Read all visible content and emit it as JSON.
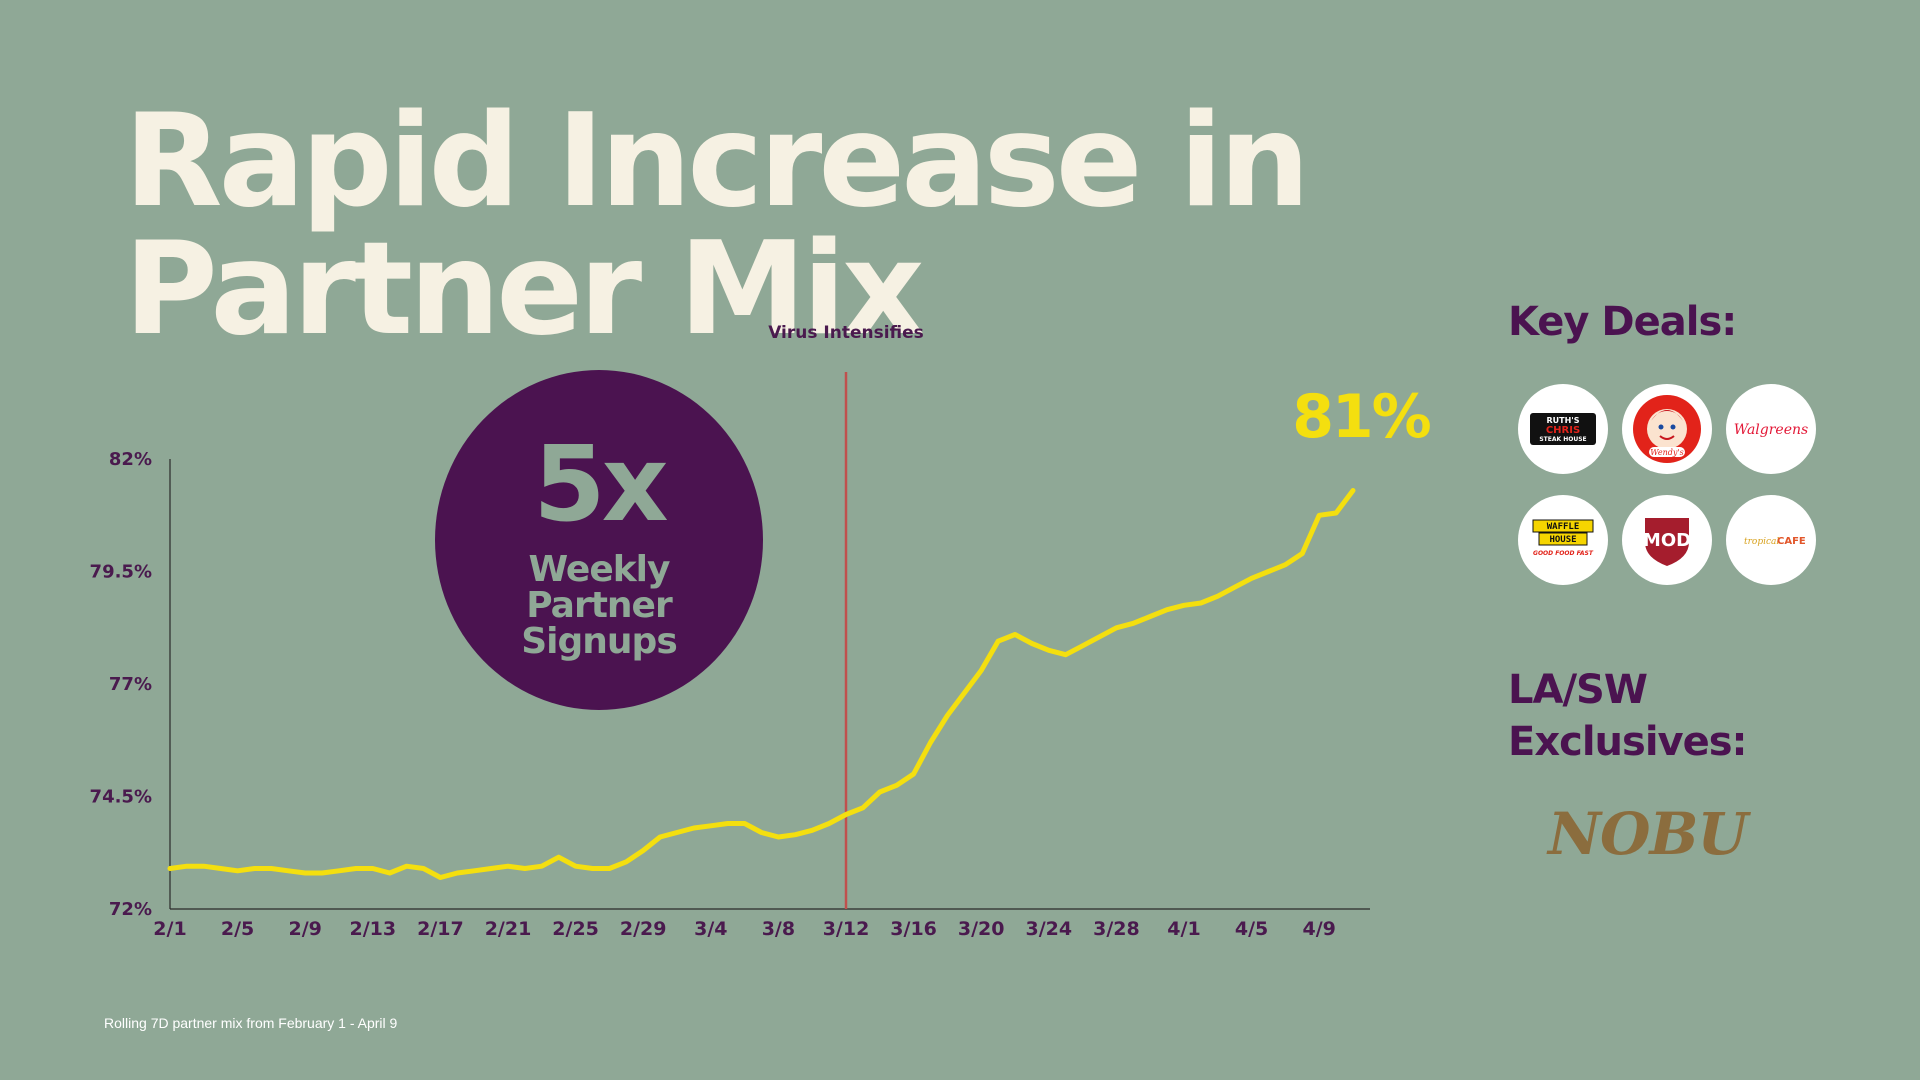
{
  "title": "Rapid Increase in Partner Mix",
  "circle": {
    "big": "5x",
    "sub": "Weekly Partner Signups"
  },
  "side": {
    "key_deals_heading": "Key Deals:",
    "exclusives_heading": "LA/SW Exclusives:",
    "key_deals": [
      {
        "name": "ruths-chris-logo",
        "text_lines": [
          "RUTH'S",
          "CHRIS",
          "STEAK HOUSE"
        ]
      },
      {
        "name": "wendys-logo",
        "text_lines": [
          "Wendy's"
        ]
      },
      {
        "name": "walgreens-logo",
        "text_lines": [
          "Walgreens"
        ]
      },
      {
        "name": "waffle-house-logo",
        "text_lines": [
          "WAFFLE",
          "HOUSE",
          "GOOD FOOD FAST"
        ]
      },
      {
        "name": "mod-logo",
        "text_lines": [
          "MOD"
        ]
      },
      {
        "name": "tropical-cafe-logo",
        "text_lines": [
          "tropical CAFE"
        ]
      }
    ],
    "exclusive": "NOBU"
  },
  "footnote": "Rolling 7D partner mix from February 1  - April 9",
  "colors": {
    "line": "#f4df0f",
    "marker": "#c0504d",
    "circle": "#4b1350",
    "background": "#8fa896",
    "title": "#f6f1e3"
  },
  "chart_data": {
    "type": "line",
    "title": "",
    "xlabel": "",
    "ylabel": "",
    "ylim": [
      72,
      82
    ],
    "yticks": [
      "72%",
      "74.5%",
      "77%",
      "79.5%",
      "82%"
    ],
    "ytick_values": [
      72,
      74.5,
      77,
      79.5,
      82
    ],
    "xticks": [
      "2/1",
      "2/5",
      "2/9",
      "2/13",
      "2/17",
      "2/21",
      "2/25",
      "2/29",
      "3/4",
      "3/8",
      "3/12",
      "3/16",
      "3/20",
      "3/24",
      "3/28",
      "4/1",
      "4/5",
      "4/9"
    ],
    "x": [
      "2/1",
      "2/2",
      "2/3",
      "2/4",
      "2/5",
      "2/6",
      "2/7",
      "2/8",
      "2/9",
      "2/10",
      "2/11",
      "2/12",
      "2/13",
      "2/14",
      "2/15",
      "2/16",
      "2/17",
      "2/18",
      "2/19",
      "2/20",
      "2/21",
      "2/22",
      "2/23",
      "2/24",
      "2/25",
      "2/26",
      "2/27",
      "2/28",
      "2/29",
      "3/1",
      "3/2",
      "3/3",
      "3/4",
      "3/5",
      "3/6",
      "3/7",
      "3/8",
      "3/9",
      "3/10",
      "3/11",
      "3/12",
      "3/13",
      "3/14",
      "3/15",
      "3/16",
      "3/17",
      "3/18",
      "3/19",
      "3/20",
      "3/21",
      "3/22",
      "3/23",
      "3/24",
      "3/25",
      "3/26",
      "3/27",
      "3/28",
      "3/29",
      "3/30",
      "3/31",
      "4/1",
      "4/2",
      "4/3",
      "4/4",
      "4/5",
      "4/6",
      "4/7",
      "4/8",
      "4/9",
      "4/10",
      "4/11"
    ],
    "series": [
      {
        "values": [
          72.9,
          72.95,
          72.95,
          72.9,
          72.85,
          72.9,
          72.9,
          72.85,
          72.8,
          72.8,
          72.85,
          72.9,
          72.9,
          72.8,
          72.95,
          72.9,
          72.7,
          72.8,
          72.85,
          72.9,
          72.95,
          72.9,
          72.95,
          73.15,
          72.95,
          72.9,
          72.9,
          73.05,
          73.3,
          73.6,
          73.7,
          73.8,
          73.85,
          73.9,
          73.9,
          73.7,
          73.6,
          73.65,
          73.75,
          73.9,
          74.1,
          74.25,
          74.6,
          74.75,
          75.0,
          75.7,
          76.3,
          76.8,
          77.3,
          77.95,
          78.1,
          77.9,
          77.75,
          77.65,
          77.85,
          78.05,
          78.25,
          78.35,
          78.5,
          78.65,
          78.75,
          78.8,
          78.95,
          79.15,
          79.35,
          79.5,
          79.65,
          79.9,
          80.75,
          80.8,
          81.3
        ]
      }
    ],
    "annotations": [
      {
        "label": "Virus Intensifies",
        "x": "3/12"
      },
      {
        "label": "81%",
        "x": "4/11"
      }
    ]
  }
}
